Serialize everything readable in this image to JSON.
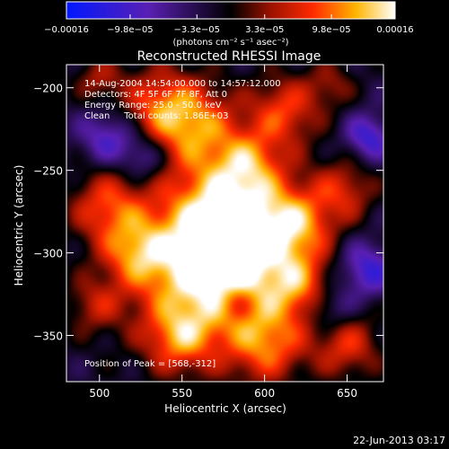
{
  "chart_data": {
    "type": "heatmap",
    "title": "Reconstructed RHESSI Image",
    "xlabel": "Heliocentric X (arcsec)",
    "ylabel": "Heliocentric Y (arcsec)",
    "xlim": [
      480,
      672
    ],
    "ylim": [
      -378,
      -186
    ],
    "x_ticks": [
      500,
      550,
      600,
      650
    ],
    "y_ticks": [
      -200,
      -250,
      -300,
      -350
    ],
    "colorbar": {
      "range": [
        -0.00016,
        0.00016
      ],
      "tick_labels": [
        "-0.00016",
        "-9.8e-05",
        "-3.3e-05",
        "3.3e-05",
        "9.8e-05",
        "0.00016"
      ],
      "unit_label": "(photons cm⁻² s⁻¹ asec⁻²)"
    },
    "annotations": [
      "14-Aug-2004 14:54:00.000 to 14:57:12.000",
      "Detectors: 4F 5F 6F 7F 8F, Att 0",
      "Energy Range: 25.0 - 50.0 keV",
      "Clean     Total counts: 1.86E+03"
    ],
    "peak_label": "Position of Peak = [568,-312]",
    "peak": [
      568,
      -312
    ],
    "sources": [
      {
        "x": 568,
        "y": -312,
        "amp": 1.0,
        "sigma": 32
      },
      {
        "x": 580,
        "y": -278,
        "amp": 0.8,
        "sigma": 26
      },
      {
        "x": 557,
        "y": -222,
        "amp": 0.65,
        "sigma": 18
      },
      {
        "x": 535,
        "y": -210,
        "amp": 0.5,
        "sigma": 16
      },
      {
        "x": 612,
        "y": -214,
        "amp": 0.55,
        "sigma": 15
      },
      {
        "x": 505,
        "y": -272,
        "amp": 0.55,
        "sigma": 16
      },
      {
        "x": 522,
        "y": -300,
        "amp": 0.5,
        "sigma": 14
      },
      {
        "x": 620,
        "y": -283,
        "amp": 0.55,
        "sigma": 15
      },
      {
        "x": 648,
        "y": -262,
        "amp": 0.45,
        "sigma": 13
      },
      {
        "x": 620,
        "y": -320,
        "amp": 0.5,
        "sigma": 14
      },
      {
        "x": 602,
        "y": -356,
        "amp": 0.55,
        "sigma": 16
      },
      {
        "x": 650,
        "y": -356,
        "amp": 0.5,
        "sigma": 14
      },
      {
        "x": 548,
        "y": -352,
        "amp": 0.5,
        "sigma": 14
      },
      {
        "x": 497,
        "y": -332,
        "amp": 0.35,
        "sigma": 12
      },
      {
        "x": 500,
        "y": -195,
        "amp": 0.35,
        "sigma": 10
      },
      {
        "x": 640,
        "y": -198,
        "amp": 0.3,
        "sigma": 10
      },
      {
        "x": 590,
        "y": -245,
        "amp": 0.45,
        "sigma": 14
      },
      {
        "x": 505,
        "y": -230,
        "amp": -0.45,
        "sigma": 12
      },
      {
        "x": 663,
        "y": -230,
        "amp": -0.5,
        "sigma": 10
      },
      {
        "x": 662,
        "y": -310,
        "amp": -0.5,
        "sigma": 12
      },
      {
        "x": 527,
        "y": -242,
        "amp": -0.4,
        "sigma": 10
      },
      {
        "x": 640,
        "y": -335,
        "amp": -0.35,
        "sigma": 10
      },
      {
        "x": 583,
        "y": -330,
        "amp": -0.3,
        "sigma": 8
      }
    ]
  },
  "footer": {
    "timestamp": "22-Jun-2013 03:17"
  }
}
